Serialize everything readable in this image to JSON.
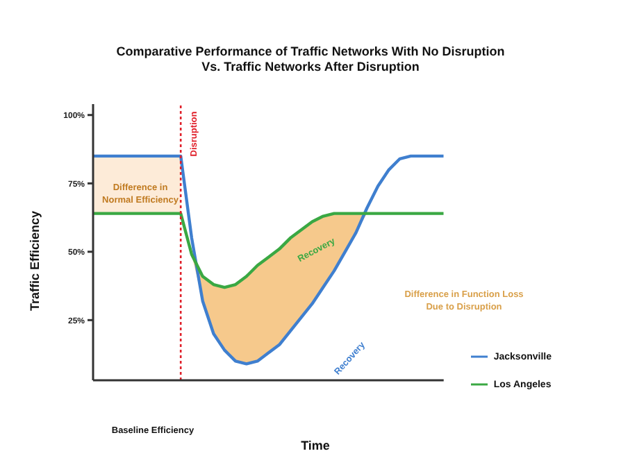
{
  "chart_data": {
    "type": "line",
    "title": "Comparative Performance of Traffic Networks With No Disruption\nVs. Traffic Networks After Disruption",
    "xlabel": "Time",
    "ylabel": "Traffic Efficiency",
    "categories": [
      null,
      null,
      null,
      null,
      null,
      null,
      null,
      null,
      null,
      null,
      null,
      null,
      null,
      null,
      null,
      null,
      null,
      null,
      null,
      null,
      null,
      null,
      null,
      null,
      null,
      null,
      null,
      null,
      null,
      null,
      null,
      null,
      null
    ],
    "series": [
      {
        "name": "Jacksonville",
        "color": "#3f7fcf",
        "values": [
          85,
          85,
          85,
          85,
          85,
          85,
          85,
          85,
          85,
          55,
          32,
          20,
          14,
          10,
          9,
          10,
          13,
          16,
          21,
          26,
          31,
          37,
          43,
          50,
          57,
          66,
          74,
          80,
          84,
          85,
          85,
          85,
          85
        ]
      },
      {
        "name": "Los Angeles",
        "color": "#3aa843",
        "values": [
          64,
          64,
          64,
          64,
          64,
          64,
          64,
          64,
          64,
          49,
          41,
          38,
          37,
          38,
          41,
          45,
          48,
          51,
          55,
          58,
          61,
          63,
          64,
          64,
          64,
          64,
          64,
          64,
          64,
          64,
          64,
          64,
          64
        ],
        "lower": [
          null,
          null,
          null,
          null,
          null,
          null,
          null,
          null,
          null,
          49,
          32,
          20,
          14,
          10,
          9,
          10,
          13,
          16,
          21,
          26,
          31,
          37,
          43,
          50,
          57,
          64,
          null,
          null,
          null,
          null,
          null,
          null,
          null
        ],
        "upper": [
          null,
          null,
          null,
          null,
          null,
          null,
          null,
          null,
          null,
          49,
          41,
          38,
          37,
          38,
          41,
          45,
          48,
          51,
          55,
          58,
          61,
          63,
          64,
          64,
          64,
          64,
          null,
          null,
          null,
          null,
          null,
          null,
          null
        ]
      }
    ],
    "ylim": [
      3,
      104
    ],
    "yticks": [
      {
        "value": 25,
        "label": "25%"
      },
      {
        "value": 50,
        "label": "50%"
      },
      {
        "value": 75,
        "label": "75%"
      },
      {
        "value": 100,
        "label": "100%"
      }
    ],
    "tick_labels": "y",
    "grid": false,
    "legend": "bottom right",
    "line_style": "solid",
    "marker": "none",
    "bands": [
      {
        "axis": "y",
        "from": 64,
        "to": 85,
        "label": "Difference in Normal Efficiency",
        "color": "#fdebd8"
      }
    ],
    "annotations": [
      "Disruption",
      "Recovery",
      "Recovery",
      "Difference in Function Loss Due to Disruption",
      "Baseline Efficiency"
    ]
  }
}
